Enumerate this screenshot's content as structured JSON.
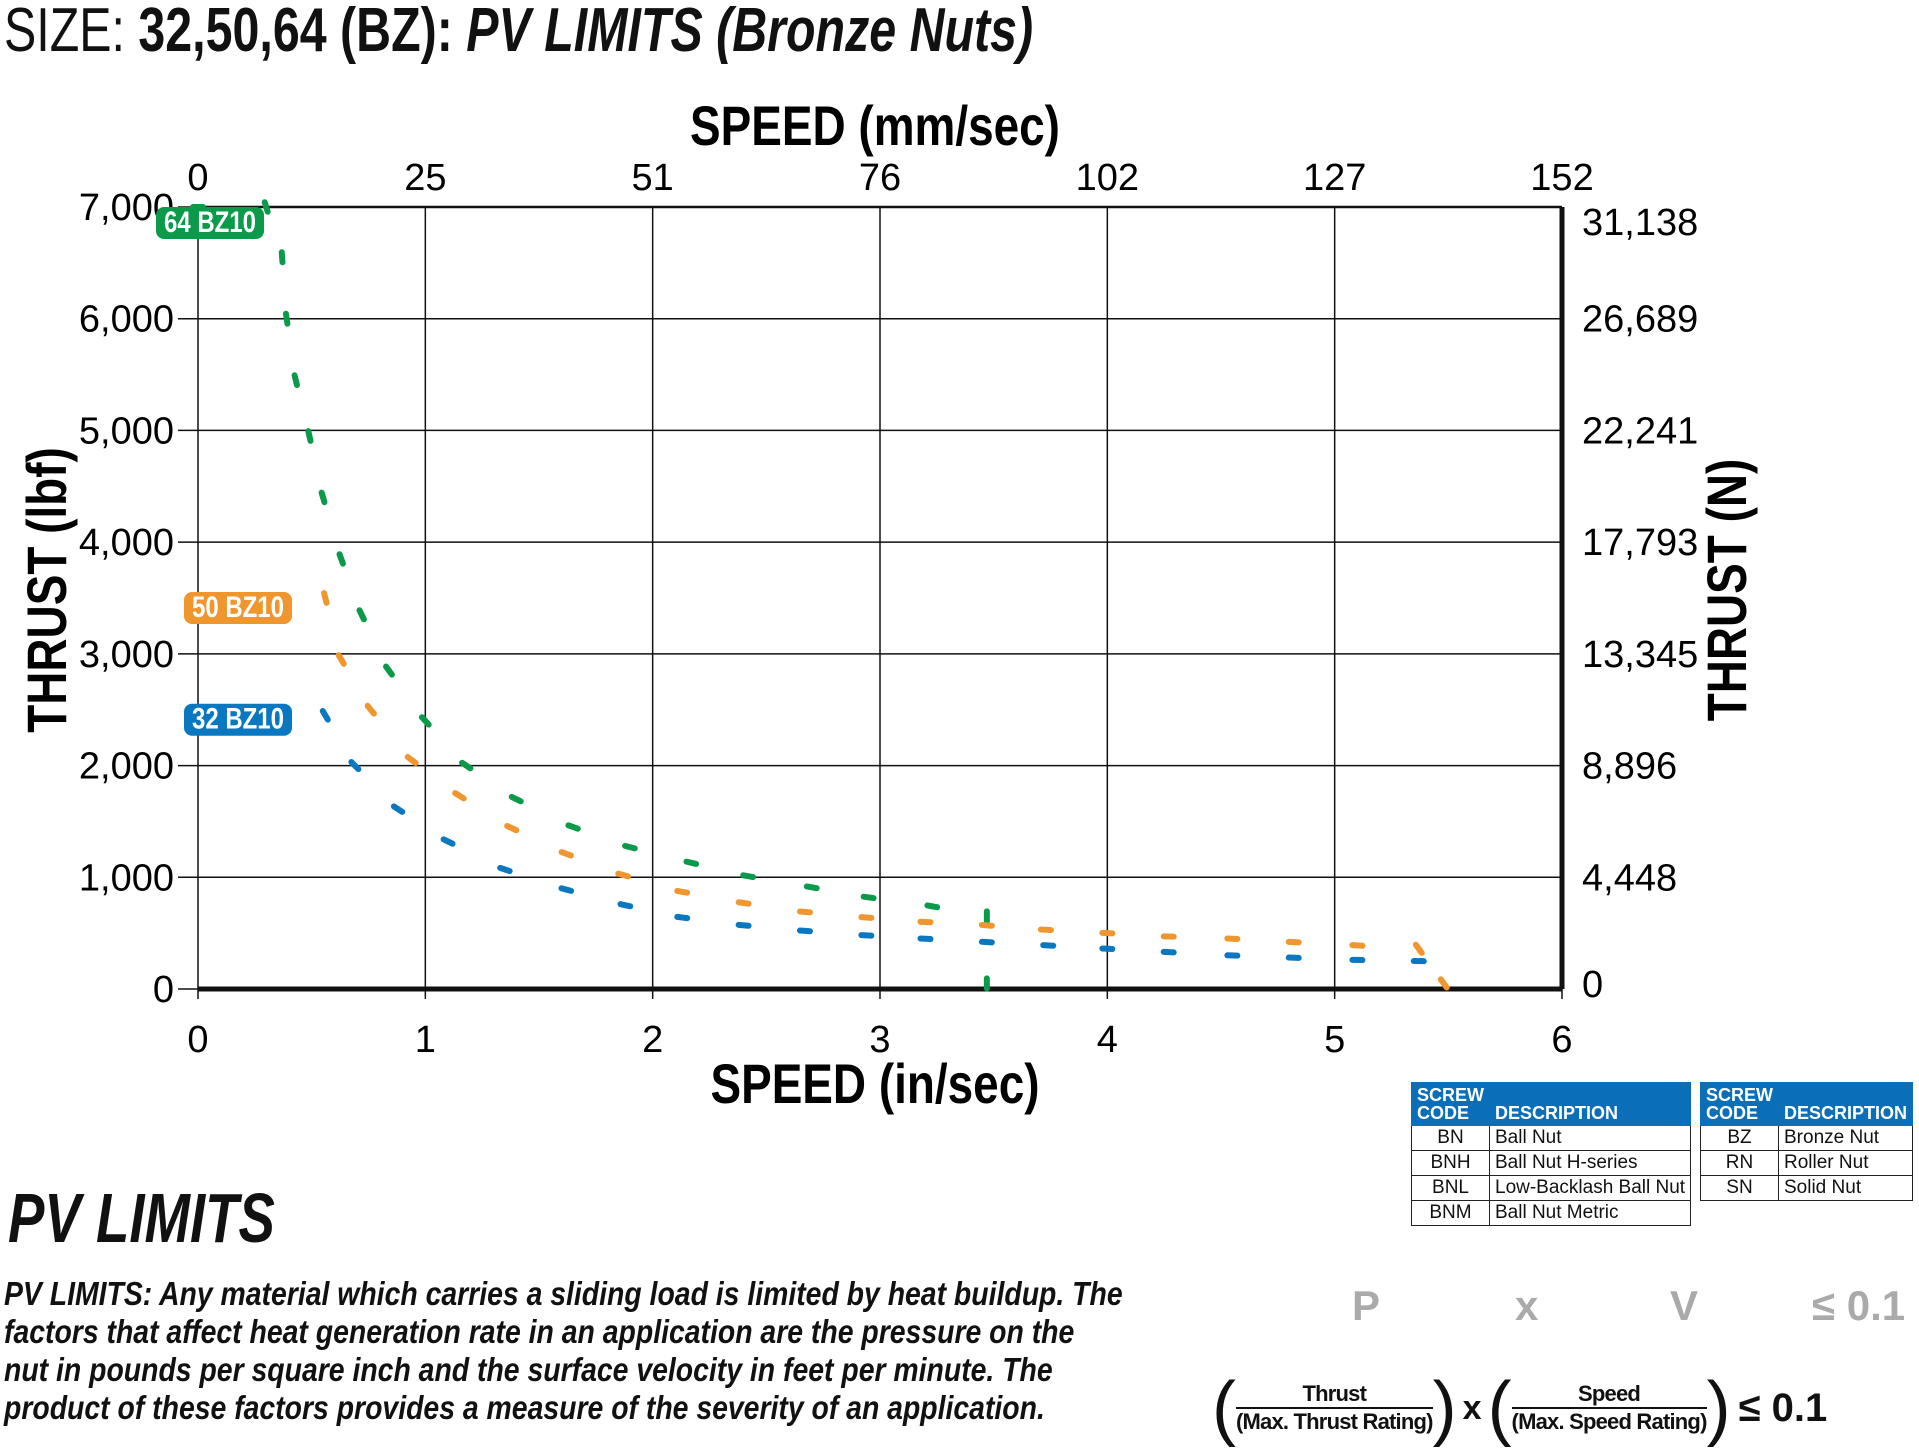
{
  "title": {
    "prefix": "SIZE:",
    "sizes": "32,50,64 (BZ):",
    "name": "PV LIMITS (Bronze Nuts)"
  },
  "chart_data": {
    "type": "line",
    "top_axis_label": "SPEED (mm/sec)",
    "xlabel": "SPEED (in/sec)",
    "ylabel": "THRUST (lbf)",
    "y2label": "THRUST (N)",
    "xlim": [
      0,
      6
    ],
    "ylim": [
      0,
      7000
    ],
    "x_ticks": [
      "0",
      "1",
      "2",
      "3",
      "4",
      "5",
      "6"
    ],
    "x2_ticks": [
      "0",
      "25",
      "51",
      "76",
      "102",
      "127",
      "152"
    ],
    "y_ticks": [
      "0",
      "1,000",
      "2,000",
      "3,000",
      "4,000",
      "5,000",
      "6,000",
      "7,000"
    ],
    "y2_ticks": [
      "0",
      "4,448",
      "8,896",
      "13,345",
      "17,793",
      "22,241",
      "26,689",
      "31,138"
    ],
    "grid": true,
    "series": [
      {
        "name": "64 BZ10",
        "color": "#0a9a4a",
        "points": [
          [
            0,
            7000
          ],
          [
            0.3,
            7000
          ],
          [
            0.37,
            6550
          ],
          [
            0.39,
            6000
          ],
          [
            0.43,
            5450
          ],
          [
            0.49,
            4950
          ],
          [
            0.55,
            4400
          ],
          [
            0.63,
            3850
          ],
          [
            0.72,
            3350
          ],
          [
            0.84,
            2850
          ],
          [
            1.0,
            2400
          ],
          [
            1.18,
            2000
          ],
          [
            1.4,
            1700
          ],
          [
            1.65,
            1450
          ],
          [
            1.9,
            1270
          ],
          [
            2.17,
            1130
          ],
          [
            2.42,
            1010
          ],
          [
            2.7,
            910
          ],
          [
            2.95,
            820
          ],
          [
            3.23,
            740
          ],
          [
            3.47,
            650
          ],
          [
            3.47,
            50
          ]
        ]
      },
      {
        "name": "50 BZ10",
        "color": "#f0962f",
        "points": [
          [
            0,
            3500
          ],
          [
            0.3,
            3500
          ],
          [
            0.56,
            3500
          ],
          [
            0.63,
            2950
          ],
          [
            0.76,
            2500
          ],
          [
            0.94,
            2050
          ],
          [
            1.15,
            1730
          ],
          [
            1.38,
            1440
          ],
          [
            1.62,
            1210
          ],
          [
            1.87,
            1020
          ],
          [
            2.13,
            870
          ],
          [
            2.4,
            770
          ],
          [
            2.67,
            690
          ],
          [
            2.94,
            640
          ],
          [
            3.2,
            600
          ],
          [
            3.47,
            570
          ],
          [
            3.73,
            530
          ],
          [
            4.0,
            500
          ],
          [
            4.27,
            470
          ],
          [
            4.55,
            450
          ],
          [
            4.82,
            420
          ],
          [
            5.1,
            390
          ],
          [
            5.37,
            360
          ],
          [
            5.48,
            50
          ]
        ]
      },
      {
        "name": "32 BZ10",
        "color": "#0a78c0",
        "points": [
          [
            0,
            2500
          ],
          [
            0.3,
            2500
          ],
          [
            0.56,
            2450
          ],
          [
            0.69,
            2000
          ],
          [
            0.88,
            1610
          ],
          [
            1.1,
            1320
          ],
          [
            1.35,
            1070
          ],
          [
            1.62,
            890
          ],
          [
            1.88,
            750
          ],
          [
            2.13,
            640
          ],
          [
            2.4,
            570
          ],
          [
            2.67,
            520
          ],
          [
            2.94,
            480
          ],
          [
            3.2,
            450
          ],
          [
            3.47,
            420
          ],
          [
            3.74,
            390
          ],
          [
            4.0,
            360
          ],
          [
            4.27,
            330
          ],
          [
            4.55,
            300
          ],
          [
            4.82,
            280
          ],
          [
            5.1,
            260
          ],
          [
            5.37,
            250
          ]
        ]
      }
    ]
  },
  "tables": [
    {
      "h1": "SCREW CODE",
      "h2": "DESCRIPTION",
      "rows": [
        [
          "BN",
          "Ball Nut"
        ],
        [
          "BNH",
          "Ball Nut H-series"
        ],
        [
          "BNL",
          "Low-Backlash Ball Nut"
        ],
        [
          "BNM",
          "Ball Nut Metric"
        ]
      ]
    },
    {
      "h1": "SCREW CODE",
      "h2": "DESCRIPTION",
      "rows": [
        [
          "BZ",
          "Bronze Nut"
        ],
        [
          "RN",
          "Roller Nut"
        ],
        [
          "SN",
          "Solid Nut"
        ]
      ]
    }
  ],
  "pv": {
    "heading": "PV LIMITS",
    "lines": [
      "PV LIMITS: Any material which carries a sliding load is limited by heat buildup. The",
      "factors that affect heat generation rate in an application are the pressure on the",
      "nut in pounds per square inch and the surface velocity in feet per minute. The",
      "product of these factors provides a measure of the severity of an application."
    ]
  },
  "formula": {
    "p": "P",
    "x": "x",
    "v": "V",
    "le": "≤ 0.1",
    "num1": "Thrust",
    "den1": "(Max. Thrust Rating)",
    "num2": "Speed",
    "den2": "(Max. Speed Rating)",
    "le2": "≤ 0.1"
  }
}
